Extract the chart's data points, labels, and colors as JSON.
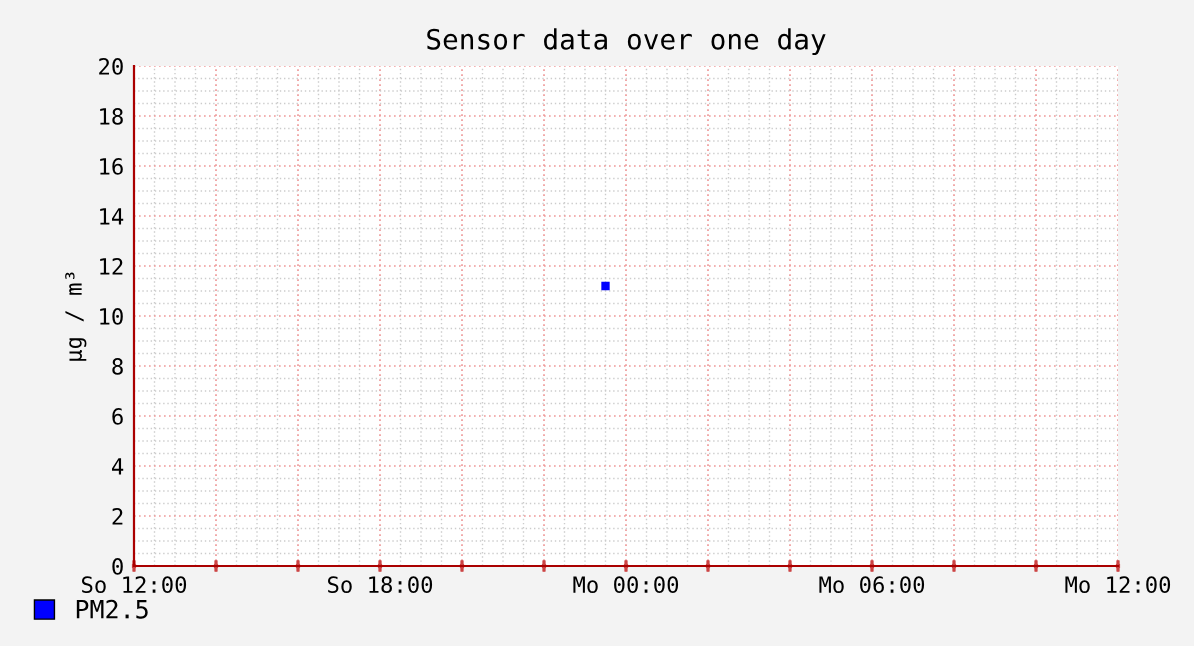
{
  "chart_data": {
    "type": "line",
    "title": "Sensor data over one day",
    "ylabel": "µg / m³",
    "categories": [
      "So 12:00",
      null,
      null,
      null,
      null,
      null,
      null,
      null,
      null,
      null,
      null,
      null,
      "So 18:00",
      null,
      null,
      null,
      null,
      null,
      null,
      null,
      null,
      null,
      null,
      null,
      "Mo 00:00",
      null,
      null,
      null,
      null,
      null,
      null,
      null,
      null,
      null,
      null,
      null,
      "Mo 06:00",
      null,
      null,
      null,
      null,
      null,
      null,
      null,
      null,
      null,
      null,
      null,
      "Mo 12:00"
    ],
    "series": [
      {
        "name": "PM2.5",
        "color": "#0000ff",
        "values": [
          null,
          null,
          null,
          null,
          null,
          null,
          null,
          null,
          null,
          null,
          null,
          null,
          null,
          null,
          null,
          null,
          null,
          null,
          null,
          null,
          null,
          null,
          null,
          11.2,
          null,
          null,
          null,
          null,
          null,
          null,
          null,
          null,
          null,
          null,
          null,
          null,
          null,
          null,
          null,
          null,
          null,
          null,
          null,
          null,
          null,
          null,
          null,
          null,
          null
        ]
      }
    ],
    "ylim": [
      0,
      20
    ],
    "yticks": [
      0,
      2,
      4,
      6,
      8,
      10,
      12,
      14,
      16,
      18,
      20
    ],
    "grid": true,
    "legend": "bottom left",
    "marker": "square"
  }
}
